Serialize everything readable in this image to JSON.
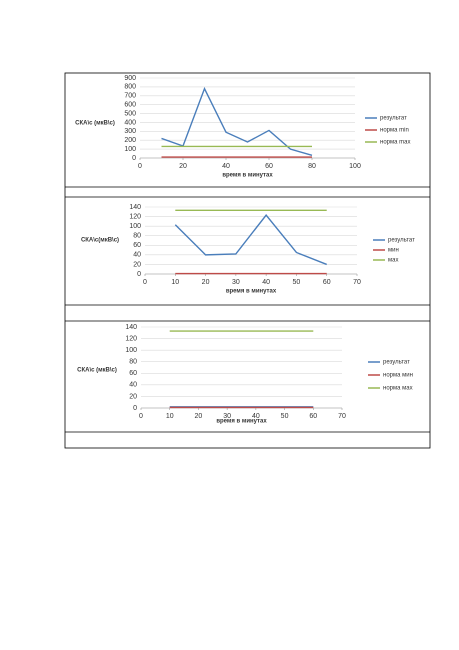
{
  "chart_data": [
    {
      "type": "line",
      "y_label": "СКА\\с (мкВ\\с)",
      "x_label": "время в минутах",
      "x": [
        10,
        20,
        30,
        40,
        50,
        60,
        70,
        80
      ],
      "xlim": [
        0,
        100
      ],
      "xticks": [
        0,
        20,
        40,
        60,
        80,
        100
      ],
      "ylim": [
        0,
        900
      ],
      "yticks": [
        0,
        100,
        200,
        300,
        400,
        500,
        600,
        700,
        800,
        900
      ],
      "grid": true,
      "series": [
        {
          "name": "результат",
          "color": "#4a7ebb",
          "values": [
            220,
            135,
            780,
            290,
            180,
            310,
            100,
            30
          ]
        },
        {
          "name": "норма min",
          "color": "#be4b48",
          "values": [
            10,
            10,
            10,
            10,
            10,
            10,
            10,
            10
          ]
        },
        {
          "name": "норма max",
          "color": "#98b954",
          "values": [
            130,
            130,
            130,
            130,
            130,
            130,
            130,
            130
          ]
        }
      ]
    },
    {
      "type": "line",
      "y_label": "СКА\\с(мкВ\\с)",
      "x_label": "время в минутах",
      "x": [
        10,
        20,
        30,
        40,
        50,
        60
      ],
      "xlim": [
        0,
        70
      ],
      "xticks": [
        0,
        10,
        20,
        30,
        40,
        50,
        60,
        70
      ],
      "ylim": [
        0,
        140
      ],
      "yticks": [
        0,
        20,
        40,
        60,
        80,
        100,
        120,
        140
      ],
      "grid": true,
      "series": [
        {
          "name": "результат",
          "color": "#4a7ebb",
          "values": [
            103,
            40,
            42,
            123,
            45,
            20
          ]
        },
        {
          "name": "мин",
          "color": "#be4b48",
          "values": [
            1,
            1,
            1,
            1,
            1,
            1
          ]
        },
        {
          "name": "мах",
          "color": "#98b954",
          "values": [
            133,
            133,
            133,
            133,
            133,
            133
          ]
        }
      ]
    },
    {
      "type": "line",
      "y_label": "СКА\\с (мкВ\\с)",
      "x_label": "время в минутах",
      "x": [
        10,
        20,
        30,
        40,
        50,
        60
      ],
      "xlim": [
        0,
        70
      ],
      "xticks": [
        0,
        10,
        20,
        30,
        40,
        50,
        60,
        70
      ],
      "ylim": [
        0,
        140
      ],
      "yticks": [
        0,
        20,
        40,
        60,
        80,
        100,
        120,
        140
      ],
      "grid": true,
      "series": [
        {
          "name": "результат",
          "color": "#4a7ebb",
          "values": [
            2,
            2,
            2,
            2,
            2,
            2
          ]
        },
        {
          "name": "норма мин",
          "color": "#be4b48",
          "values": [
            1,
            1,
            1,
            1,
            1,
            1
          ]
        },
        {
          "name": "норма мах",
          "color": "#98b954",
          "values": [
            133,
            133,
            133,
            133,
            133,
            133
          ]
        }
      ]
    }
  ]
}
